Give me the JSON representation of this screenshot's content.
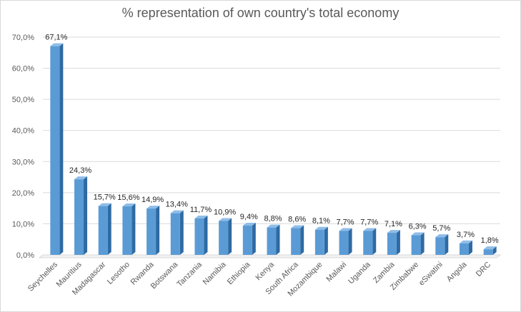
{
  "chart_data": {
    "type": "bar",
    "title": "% representation of own country's total economy",
    "categories": [
      "Seychelles",
      "Mauritius",
      "Madagascar",
      "Lesotho",
      "Rwanda",
      "Botswana",
      "Tanzania",
      "Namibia",
      "Ethiopia",
      "Kenya",
      "South Africa",
      "Mozambique",
      "Malawi",
      "Uganda",
      "Zambia",
      "Zimbabwe",
      "eSwatini",
      "Angola",
      "DRC"
    ],
    "values": [
      67.1,
      24.3,
      15.7,
      15.6,
      14.9,
      13.4,
      11.7,
      10.9,
      9.4,
      8.8,
      8.6,
      8.1,
      7.7,
      7.7,
      7.1,
      6.3,
      5.7,
      3.7,
      1.8
    ],
    "data_labels": [
      "67,1%",
      "24,3%",
      "15,7%",
      "15,6%",
      "14,9%",
      "13,4%",
      "11,7%",
      "10,9%",
      "9,4%",
      "8,8%",
      "8,6%",
      "8,1%",
      "7,7%",
      "7,7%",
      "7,1%",
      "6,3%",
      "5,7%",
      "3,7%",
      "1,8%"
    ],
    "yticks": [
      "0,0%",
      "10,0%",
      "20,0%",
      "30,0%",
      "40,0%",
      "50,0%",
      "60,0%",
      "70,0%"
    ],
    "ylim": [
      0,
      70
    ],
    "xlabel": "",
    "ylabel": "",
    "grid": true,
    "legend": "none",
    "colors": {
      "bar_front": "#5b9bd5",
      "bar_side": "#2e6aa3",
      "bar_top": "#8fbde8",
      "grid": "#d9d9d9"
    }
  }
}
